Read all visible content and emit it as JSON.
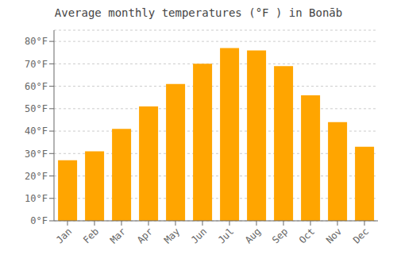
{
  "chart_data": {
    "type": "bar",
    "title": "Average monthly temperatures (°F ) in Bonāb",
    "categories": [
      "Jan",
      "Feb",
      "Mar",
      "Apr",
      "May",
      "Jun",
      "Jul",
      "Aug",
      "Sep",
      "Oct",
      "Nov",
      "Dec"
    ],
    "values": [
      27,
      31,
      41,
      51,
      61,
      70,
      77,
      76,
      69,
      56,
      44,
      33
    ],
    "color": "#FFA500",
    "ylim": [
      0,
      85
    ],
    "yticks": [
      {
        "value": 0,
        "label": "0°F"
      },
      {
        "value": 10,
        "label": "10°F"
      },
      {
        "value": 20,
        "label": "20°F"
      },
      {
        "value": 30,
        "label": "30°F"
      },
      {
        "value": 40,
        "label": "40°F"
      },
      {
        "value": 50,
        "label": "50°F"
      },
      {
        "value": 60,
        "label": "60°F"
      },
      {
        "value": 70,
        "label": "70°F"
      },
      {
        "value": 80,
        "label": "80°F"
      }
    ],
    "grid": true
  }
}
